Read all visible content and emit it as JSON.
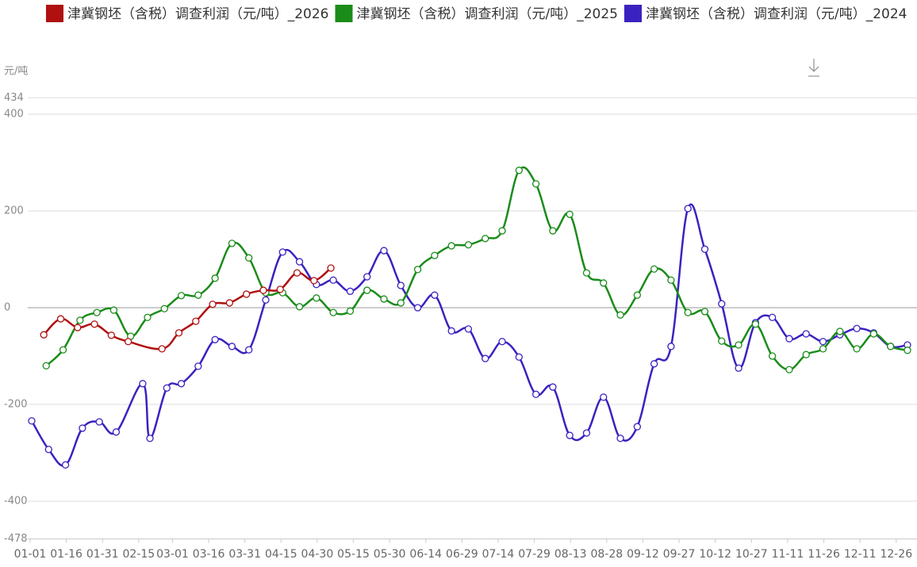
{
  "chart_data": {
    "type": "line",
    "y_label": "元/吨",
    "ylim": [
      -478,
      434
    ],
    "yticks": [
      -478,
      -400,
      -200,
      0,
      200,
      400,
      434
    ],
    "xticks": [
      "01-01",
      "01-16",
      "01-31",
      "02-15",
      "03-01",
      "03-16",
      "03-31",
      "04-15",
      "04-30",
      "05-15",
      "05-30",
      "06-14",
      "06-29",
      "07-14",
      "07-29",
      "08-13",
      "08-28",
      "09-12",
      "09-27",
      "10-12",
      "10-27",
      "11-11",
      "11-26",
      "12-11",
      "12-26"
    ],
    "grid": true,
    "series": [
      {
        "name": "津冀钢坯（含税）调查利润（元/吨）_2026",
        "color": "#b01010",
        "x": [
          "01-06",
          "01-13",
          "01-20",
          "01-27",
          "02-03",
          "02-10",
          "02-24",
          "03-03",
          "03-10",
          "03-17",
          "03-24",
          "03-31",
          "04-07",
          "04-14",
          "04-21",
          "04-28",
          "05-05"
        ],
        "values": [
          -56,
          -23,
          -41,
          -34,
          -57,
          -70,
          -85,
          -52,
          -28,
          7,
          10,
          28,
          36,
          38,
          72,
          56,
          82
        ]
      },
      {
        "name": "津冀钢坯（含税）调查利润（元/吨）_2025",
        "color": "#1a8c1a",
        "x": [
          "01-07",
          "01-14",
          "01-21",
          "01-28",
          "02-04",
          "02-11",
          "02-18",
          "02-25",
          "03-04",
          "03-11",
          "03-18",
          "03-25",
          "04-01",
          "04-08",
          "04-15",
          "04-22",
          "04-29",
          "05-06",
          "05-13",
          "05-20",
          "05-27",
          "06-03",
          "06-10",
          "06-17",
          "06-24",
          "07-01",
          "07-08",
          "07-15",
          "07-22",
          "07-29",
          "08-05",
          "08-12",
          "08-19",
          "08-26",
          "09-02",
          "09-09",
          "09-16",
          "09-23",
          "09-30",
          "10-07",
          "10-14",
          "10-21",
          "10-28",
          "11-04",
          "11-11",
          "11-18",
          "11-25",
          "12-02",
          "12-09",
          "12-16",
          "12-23",
          "12-30"
        ],
        "values": [
          -120,
          -87,
          -26,
          -10,
          -5,
          -59,
          -20,
          -2,
          25,
          26,
          61,
          133,
          103,
          31,
          31,
          2,
          20,
          -10,
          -7,
          36,
          18,
          10,
          79,
          108,
          128,
          130,
          143,
          159,
          284,
          256,
          159,
          193,
          72,
          51,
          -15,
          26,
          80,
          57,
          -10,
          -8,
          -69,
          -77,
          -34,
          -100,
          -128,
          -97,
          -85,
          -49,
          -85,
          -54,
          -80,
          -88
        ]
      },
      {
        "name": "津冀钢坯（含税）调查利润（元/吨）_2024",
        "color": "#3a22c0",
        "x": [
          "01-01",
          "01-08",
          "01-15",
          "01-22",
          "01-29",
          "02-05",
          "02-16",
          "02-19",
          "02-26",
          "03-04",
          "03-11",
          "03-18",
          "03-25",
          "04-01",
          "04-08",
          "04-15",
          "04-22",
          "04-29",
          "05-06",
          "05-13",
          "05-20",
          "05-27",
          "06-03",
          "06-10",
          "06-17",
          "06-24",
          "07-01",
          "07-08",
          "07-15",
          "07-22",
          "07-29",
          "08-05",
          "08-12",
          "08-19",
          "08-26",
          "09-02",
          "09-09",
          "09-16",
          "09-23",
          "09-30",
          "10-07",
          "10-14",
          "10-21",
          "10-28",
          "11-04",
          "11-11",
          "11-18",
          "11-25",
          "12-02",
          "12-09",
          "12-16",
          "12-23",
          "12-30"
        ],
        "values": [
          -234,
          -293,
          -325,
          -249,
          -236,
          -257,
          -157,
          -270,
          -166,
          -157,
          -121,
          -66,
          -80,
          -87,
          16,
          115,
          95,
          48,
          57,
          34,
          64,
          118,
          46,
          0,
          26,
          -48,
          -44,
          -105,
          -70,
          -102,
          -179,
          -164,
          -264,
          -259,
          -185,
          -270,
          -246,
          -116,
          -80,
          205,
          121,
          8,
          -125,
          -31,
          -20,
          -64,
          -54,
          -70,
          -56,
          -43,
          -52,
          -80,
          -77
        ]
      }
    ]
  }
}
